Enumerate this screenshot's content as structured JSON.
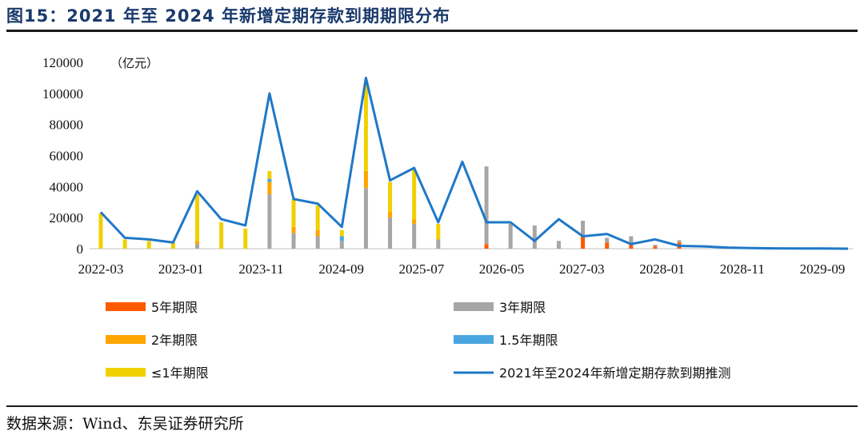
{
  "header": {
    "title": "图15：2021 年至 2024 年新增定期存款到期期限分布"
  },
  "footer": {
    "source": "数据来源：Wind、东吴证券研究所"
  },
  "chart_data": {
    "type": "bar",
    "stacked": true,
    "unit_label": "（亿元）",
    "ylim": [
      0,
      120000
    ],
    "yticks": [
      0,
      20000,
      40000,
      60000,
      80000,
      100000,
      120000
    ],
    "x_tick_labels": [
      "2022-03",
      "2023-01",
      "2023-11",
      "2024-09",
      "2025-07",
      "2026-05",
      "2027-03",
      "2028-01",
      "2028-11",
      "2029-09"
    ],
    "categories": [
      "2022-03",
      "2022-06",
      "2022-09",
      "2022-12",
      "2023-03",
      "2023-06",
      "2023-09",
      "2023-12",
      "2024-03",
      "2024-06",
      "2024-09",
      "2024-12",
      "2025-03",
      "2025-06",
      "2025-09",
      "2025-12",
      "2026-03",
      "2026-06",
      "2026-09",
      "2026-12",
      "2027-03",
      "2027-06",
      "2027-09",
      "2027-12",
      "2028-03",
      "2028-06",
      "2028-09",
      "2028-12",
      "2029-03",
      "2029-06",
      "2029-09",
      "2029-12"
    ],
    "legend_position": "bottom",
    "series": [
      {
        "name": "5年期限",
        "color": "#ff5a00",
        "kind": "bar",
        "values": [
          0,
          0,
          0,
          0,
          0,
          0,
          0,
          0,
          0,
          0,
          0,
          0,
          0,
          0,
          0,
          0,
          3000,
          0,
          0,
          0,
          8000,
          4000,
          3000,
          1500,
          4000,
          0,
          0,
          0,
          0,
          0,
          0,
          0
        ]
      },
      {
        "name": "3年期限",
        "color": "#a6a6a6",
        "kind": "bar",
        "values": [
          0,
          0,
          0,
          0,
          3000,
          0,
          0,
          35000,
          10000,
          8000,
          5000,
          39000,
          20000,
          16000,
          6000,
          0,
          50000,
          16000,
          15000,
          5000,
          10000,
          3000,
          5000,
          1000,
          1500,
          0,
          0,
          0,
          0,
          0,
          0,
          0
        ]
      },
      {
        "name": "2年期限",
        "color": "#ffa500",
        "kind": "bar",
        "values": [
          0,
          0,
          0,
          0,
          2000,
          0,
          0,
          8000,
          4000,
          4000,
          0,
          11000,
          4000,
          3000,
          0,
          0,
          0,
          0,
          0,
          0,
          0,
          0,
          0,
          0,
          0,
          0,
          0,
          0,
          0,
          0,
          0,
          0
        ]
      },
      {
        "name": "1.5年期限",
        "color": "#4aa6e0",
        "kind": "bar",
        "values": [
          0,
          0,
          0,
          0,
          0,
          0,
          0,
          2000,
          0,
          0,
          3000,
          0,
          0,
          0,
          0,
          0,
          0,
          0,
          0,
          0,
          0,
          0,
          0,
          0,
          0,
          0,
          0,
          0,
          0,
          0,
          0,
          0
        ]
      },
      {
        "name": "≤1年期限",
        "color": "#f0d000",
        "kind": "bar",
        "values": [
          23000,
          6000,
          5000,
          4000,
          30000,
          17000,
          13000,
          5000,
          18000,
          16000,
          4000,
          57000,
          19000,
          32000,
          10000,
          0,
          0,
          0,
          0,
          0,
          0,
          0,
          0,
          0,
          0,
          0,
          0,
          0,
          0,
          0,
          0,
          0
        ]
      },
      {
        "name": "2021年至2024年新增定期存款到期推测",
        "color": "#1f78c8",
        "kind": "line",
        "values": [
          23500,
          7000,
          6000,
          4000,
          37000,
          19000,
          15000,
          100000,
          32000,
          29000,
          14000,
          110000,
          44000,
          52000,
          17000,
          56000,
          17000,
          17000,
          5000,
          19000,
          8000,
          9500,
          3000,
          6000,
          1800,
          1500,
          700,
          400,
          200,
          100,
          100,
          0
        ]
      }
    ]
  }
}
